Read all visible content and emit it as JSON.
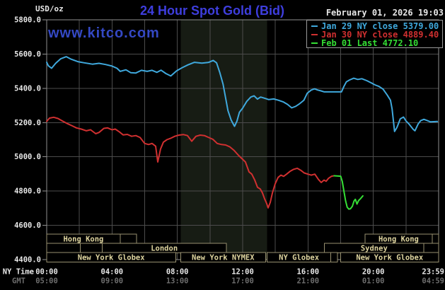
{
  "header": {
    "units_label": "USD/oz",
    "title": "24 Hour Spot Gold (Bid)",
    "datetime": "February 01, 2026 19:03",
    "watermark": "www.kitco.com"
  },
  "legend": {
    "items": [
      {
        "text": "Jan 29 NY close 5379.00",
        "color": "#3fa8dc"
      },
      {
        "text": "Jan 30 NY close 4889.40",
        "color": "#d03030"
      },
      {
        "text": "Feb 01 Last 4772.10",
        "color": "#35df35"
      }
    ]
  },
  "axis_captions": {
    "ny_time": "NY Time",
    "gmt": "GMT"
  },
  "colors": {
    "background": "#000000",
    "title": "#3e3ede",
    "watermark": "#3448c4",
    "axis_text": "#e8e8e8",
    "gmt_text": "#6e6e6e",
    "grid": "#4c4c4c",
    "plot_border": "#8f8f8f",
    "nymex_band": "#171c14",
    "session_border": "#97906f",
    "session_text": "#ded49f",
    "legend_border": "#9a9a9a"
  },
  "chart_data": {
    "type": "line",
    "title": "24 Hour Spot Gold (Bid)",
    "ylabel": "USD/oz",
    "ylim": [
      4400,
      5800
    ],
    "xlim_hours": [
      0,
      24
    ],
    "grid": true,
    "legend_position": "top-right",
    "y_ticks": [
      "5800.0",
      "5600.0",
      "5400.0",
      "5200.0",
      "5000.0",
      "4800.0",
      "4600.0",
      "4400.0"
    ],
    "x_ticks": [
      {
        "hour": 0,
        "ny": "00:00",
        "gmt": "05:00"
      },
      {
        "hour": 4,
        "ny": "04:00",
        "gmt": "09:00"
      },
      {
        "hour": 8,
        "ny": "08:00",
        "gmt": "13:00"
      },
      {
        "hour": 12,
        "ny": "12:00",
        "gmt": "17:00"
      },
      {
        "hour": 16,
        "ny": "16:00",
        "gmt": "21:00"
      },
      {
        "hour": 20,
        "ny": "20:00",
        "gmt": "01:00"
      },
      {
        "hour": 23.983,
        "ny": "23:59",
        "gmt": "04:59"
      }
    ],
    "grid_hours": [
      2,
      4,
      6,
      8,
      10,
      12,
      14,
      16,
      18,
      20,
      22
    ],
    "nymex_band_hours": [
      8.2,
      13.5
    ],
    "sessions": [
      {
        "row": 0,
        "label": "Hong Kong",
        "start": 0,
        "end": 4.5
      },
      {
        "row": 0,
        "label": "",
        "start": 4.5,
        "end": 5.5
      },
      {
        "row": 0,
        "label": "Hong Kong",
        "start": 19.5,
        "end": 23.6
      },
      {
        "row": 0,
        "label": "",
        "start": 23.6,
        "end": 24
      },
      {
        "row": 1,
        "label": "",
        "start": 0,
        "end": 2.05
      },
      {
        "row": 1,
        "label": "",
        "start": 2.05,
        "end": 3.4
      },
      {
        "row": 1,
        "label": "London",
        "start": 3.4,
        "end": 11.0
      },
      {
        "row": 1,
        "label": "Sydney",
        "start": 17.0,
        "end": 23.1
      },
      {
        "row": 1,
        "label": "",
        "start": 23.1,
        "end": 24
      },
      {
        "row": 2,
        "label": "New York Globex",
        "start": 0,
        "end": 7.9
      },
      {
        "row": 2,
        "label": "New York NYMEX",
        "start": 8.2,
        "end": 13.4
      },
      {
        "row": 2,
        "label": "NY Globex",
        "start": 13.5,
        "end": 17.4
      },
      {
        "row": 2,
        "label": "",
        "start": 17.4,
        "end": 17.8
      },
      {
        "row": 2,
        "label": "New York Globex",
        "start": 18.0,
        "end": 24
      }
    ],
    "series": [
      {
        "name": "Jan 29",
        "close_label": "NY close 5379.00",
        "color": "#3fa8dc",
        "points": [
          [
            0,
            5552
          ],
          [
            0.1,
            5532
          ],
          [
            0.3,
            5517
          ],
          [
            0.55,
            5546
          ],
          [
            0.85,
            5572
          ],
          [
            1.2,
            5585
          ],
          [
            1.5,
            5570
          ],
          [
            1.9,
            5556
          ],
          [
            2.3,
            5549
          ],
          [
            2.8,
            5541
          ],
          [
            3.2,
            5546
          ],
          [
            3.6,
            5539
          ],
          [
            4.0,
            5530
          ],
          [
            4.3,
            5517
          ],
          [
            4.5,
            5499
          ],
          [
            4.85,
            5508
          ],
          [
            5.15,
            5491
          ],
          [
            5.45,
            5489
          ],
          [
            5.8,
            5505
          ],
          [
            6.15,
            5499
          ],
          [
            6.45,
            5505
          ],
          [
            6.75,
            5493
          ],
          [
            7.0,
            5506
          ],
          [
            7.3,
            5486
          ],
          [
            7.6,
            5472
          ],
          [
            7.95,
            5502
          ],
          [
            8.3,
            5521
          ],
          [
            8.65,
            5537
          ],
          [
            9.05,
            5552
          ],
          [
            9.5,
            5547
          ],
          [
            9.9,
            5551
          ],
          [
            10.2,
            5563
          ],
          [
            10.4,
            5549
          ],
          [
            10.6,
            5492
          ],
          [
            10.8,
            5424
          ],
          [
            10.95,
            5346
          ],
          [
            11.1,
            5270
          ],
          [
            11.3,
            5214
          ],
          [
            11.5,
            5178
          ],
          [
            11.65,
            5208
          ],
          [
            11.8,
            5260
          ],
          [
            12.0,
            5284
          ],
          [
            12.25,
            5324
          ],
          [
            12.5,
            5349
          ],
          [
            12.7,
            5356
          ],
          [
            12.9,
            5337
          ],
          [
            13.1,
            5349
          ],
          [
            13.35,
            5342
          ],
          [
            13.6,
            5334
          ],
          [
            13.9,
            5338
          ],
          [
            14.2,
            5330
          ],
          [
            14.5,
            5320
          ],
          [
            14.75,
            5306
          ],
          [
            15.0,
            5286
          ],
          [
            15.25,
            5295
          ],
          [
            15.5,
            5311
          ],
          [
            15.75,
            5331
          ],
          [
            15.95,
            5371
          ],
          [
            16.2,
            5390
          ],
          [
            16.4,
            5397
          ],
          [
            16.6,
            5390
          ],
          [
            16.8,
            5385
          ],
          [
            17.0,
            5379
          ],
          [
            18.05,
            5379
          ],
          [
            18.2,
            5411
          ],
          [
            18.35,
            5438
          ],
          [
            18.55,
            5449
          ],
          [
            18.8,
            5459
          ],
          [
            19.05,
            5452
          ],
          [
            19.3,
            5456
          ],
          [
            19.6,
            5445
          ],
          [
            19.85,
            5433
          ],
          [
            20.1,
            5420
          ],
          [
            20.35,
            5411
          ],
          [
            20.6,
            5395
          ],
          [
            20.85,
            5361
          ],
          [
            21.05,
            5331
          ],
          [
            21.15,
            5280
          ],
          [
            21.3,
            5148
          ],
          [
            21.45,
            5172
          ],
          [
            21.65,
            5222
          ],
          [
            21.85,
            5232
          ],
          [
            22.0,
            5210
          ],
          [
            22.2,
            5190
          ],
          [
            22.45,
            5160
          ],
          [
            22.55,
            5152
          ],
          [
            22.75,
            5192
          ],
          [
            22.9,
            5211
          ],
          [
            23.1,
            5219
          ],
          [
            23.3,
            5212
          ],
          [
            23.5,
            5204
          ],
          [
            23.92,
            5206
          ]
        ]
      },
      {
        "name": "Jan 30",
        "close_label": "NY close 4889.40",
        "color": "#d03030",
        "points": [
          [
            0,
            5207
          ],
          [
            0.17,
            5226
          ],
          [
            0.43,
            5231
          ],
          [
            0.69,
            5224
          ],
          [
            0.95,
            5210
          ],
          [
            1.26,
            5194
          ],
          [
            1.56,
            5181
          ],
          [
            1.82,
            5169
          ],
          [
            2.12,
            5162
          ],
          [
            2.43,
            5152
          ],
          [
            2.69,
            5158
          ],
          [
            3.0,
            5135
          ],
          [
            3.2,
            5142
          ],
          [
            3.5,
            5166
          ],
          [
            3.73,
            5169
          ],
          [
            4.0,
            5158
          ],
          [
            4.2,
            5162
          ],
          [
            4.42,
            5148
          ],
          [
            4.68,
            5128
          ],
          [
            4.94,
            5131
          ],
          [
            5.2,
            5120
          ],
          [
            5.46,
            5124
          ],
          [
            5.72,
            5113
          ],
          [
            6.0,
            5078
          ],
          [
            6.24,
            5072
          ],
          [
            6.45,
            5078
          ],
          [
            6.67,
            5062
          ],
          [
            6.8,
            4970
          ],
          [
            6.97,
            5045
          ],
          [
            7.15,
            5086
          ],
          [
            7.36,
            5100
          ],
          [
            7.58,
            5108
          ],
          [
            7.84,
            5120
          ],
          [
            8.1,
            5127
          ],
          [
            8.36,
            5130
          ],
          [
            8.62,
            5124
          ],
          [
            8.88,
            5091
          ],
          [
            9.14,
            5120
          ],
          [
            9.4,
            5127
          ],
          [
            9.66,
            5124
          ],
          [
            9.92,
            5113
          ],
          [
            10.18,
            5102
          ],
          [
            10.44,
            5078
          ],
          [
            10.7,
            5072
          ],
          [
            10.96,
            5069
          ],
          [
            11.22,
            5058
          ],
          [
            11.48,
            5037
          ],
          [
            11.74,
            5009
          ],
          [
            11.96,
            4989
          ],
          [
            12.17,
            4970
          ],
          [
            12.39,
            4912
          ],
          [
            12.56,
            4899
          ],
          [
            12.74,
            4864
          ],
          [
            12.91,
            4822
          ],
          [
            13.08,
            4812
          ],
          [
            13.21,
            4790
          ],
          [
            13.34,
            4756
          ],
          [
            13.47,
            4728
          ],
          [
            13.56,
            4702
          ],
          [
            13.69,
            4734
          ],
          [
            13.82,
            4788
          ],
          [
            13.99,
            4842
          ],
          [
            14.17,
            4880
          ],
          [
            14.34,
            4893
          ],
          [
            14.51,
            4886
          ],
          [
            14.69,
            4899
          ],
          [
            14.9,
            4915
          ],
          [
            15.12,
            4927
          ],
          [
            15.34,
            4933
          ],
          [
            15.55,
            4922
          ],
          [
            15.77,
            4906
          ],
          [
            15.99,
            4899
          ],
          [
            16.2,
            4893
          ],
          [
            16.42,
            4899
          ],
          [
            16.64,
            4868
          ],
          [
            16.81,
            4850
          ],
          [
            16.98,
            4864
          ],
          [
            17.11,
            4857
          ],
          [
            17.25,
            4874
          ],
          [
            17.45,
            4887
          ],
          [
            17.6,
            4889.4
          ]
        ]
      },
      {
        "name": "Feb 01",
        "close_label": "Last 4772.10",
        "color": "#35df35",
        "points": [
          [
            17.6,
            4889.4
          ],
          [
            18.0,
            4887
          ],
          [
            18.1,
            4856
          ],
          [
            18.2,
            4800
          ],
          [
            18.3,
            4745
          ],
          [
            18.4,
            4706
          ],
          [
            18.5,
            4695
          ],
          [
            18.6,
            4697
          ],
          [
            18.72,
            4712
          ],
          [
            18.82,
            4742
          ],
          [
            18.9,
            4752
          ],
          [
            19.0,
            4724
          ],
          [
            19.1,
            4745
          ],
          [
            19.22,
            4756
          ],
          [
            19.36,
            4772.1
          ]
        ]
      }
    ]
  }
}
